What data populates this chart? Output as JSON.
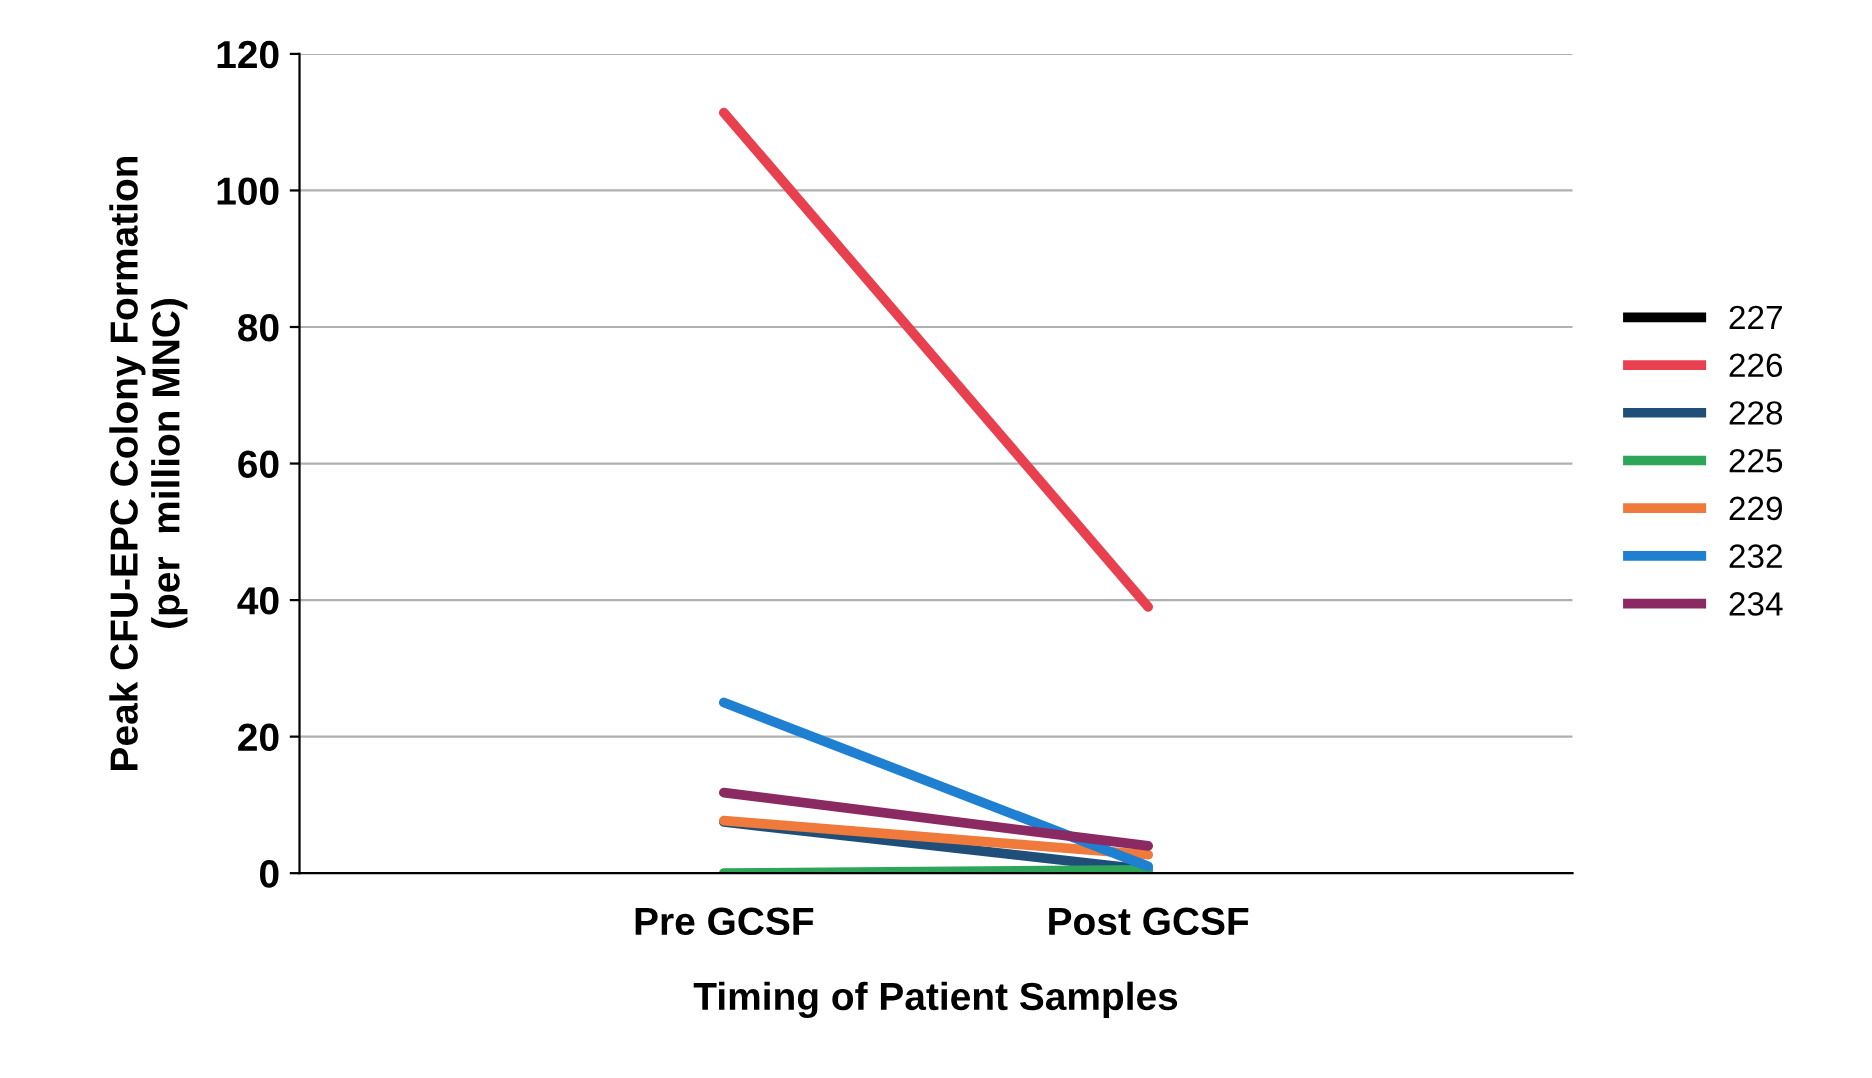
{
  "chart_data": {
    "type": "line",
    "xlabel": "Timing of Patient Samples",
    "ylabel": "Peak CFU-EPC Colony Formation\n(per  million MNC)",
    "categories": [
      "Pre GCSF",
      "Post GCSF"
    ],
    "series": [
      {
        "name": "227",
        "color": "#000000",
        "values": [
          null,
          null
        ]
      },
      {
        "name": "226",
        "color": "#e8404f",
        "values": [
          111.4,
          39
        ]
      },
      {
        "name": "228",
        "color": "#1f4e79",
        "values": [
          7.5,
          0.5
        ]
      },
      {
        "name": "225",
        "color": "#2ea65a",
        "values": [
          0,
          0.5
        ]
      },
      {
        "name": "229",
        "color": "#f07a3c",
        "values": [
          7.7,
          2.7
        ]
      },
      {
        "name": "232",
        "color": "#1f7fd0",
        "values": [
          25,
          1
        ]
      },
      {
        "name": "234",
        "color": "#8b2a62",
        "values": [
          11.8,
          4
        ]
      }
    ],
    "ylim": [
      0,
      120
    ],
    "yticks": [
      0,
      20,
      40,
      60,
      80,
      100,
      120
    ],
    "grid": "y",
    "legend": "right",
    "marker": "none",
    "line_style": "solid"
  }
}
